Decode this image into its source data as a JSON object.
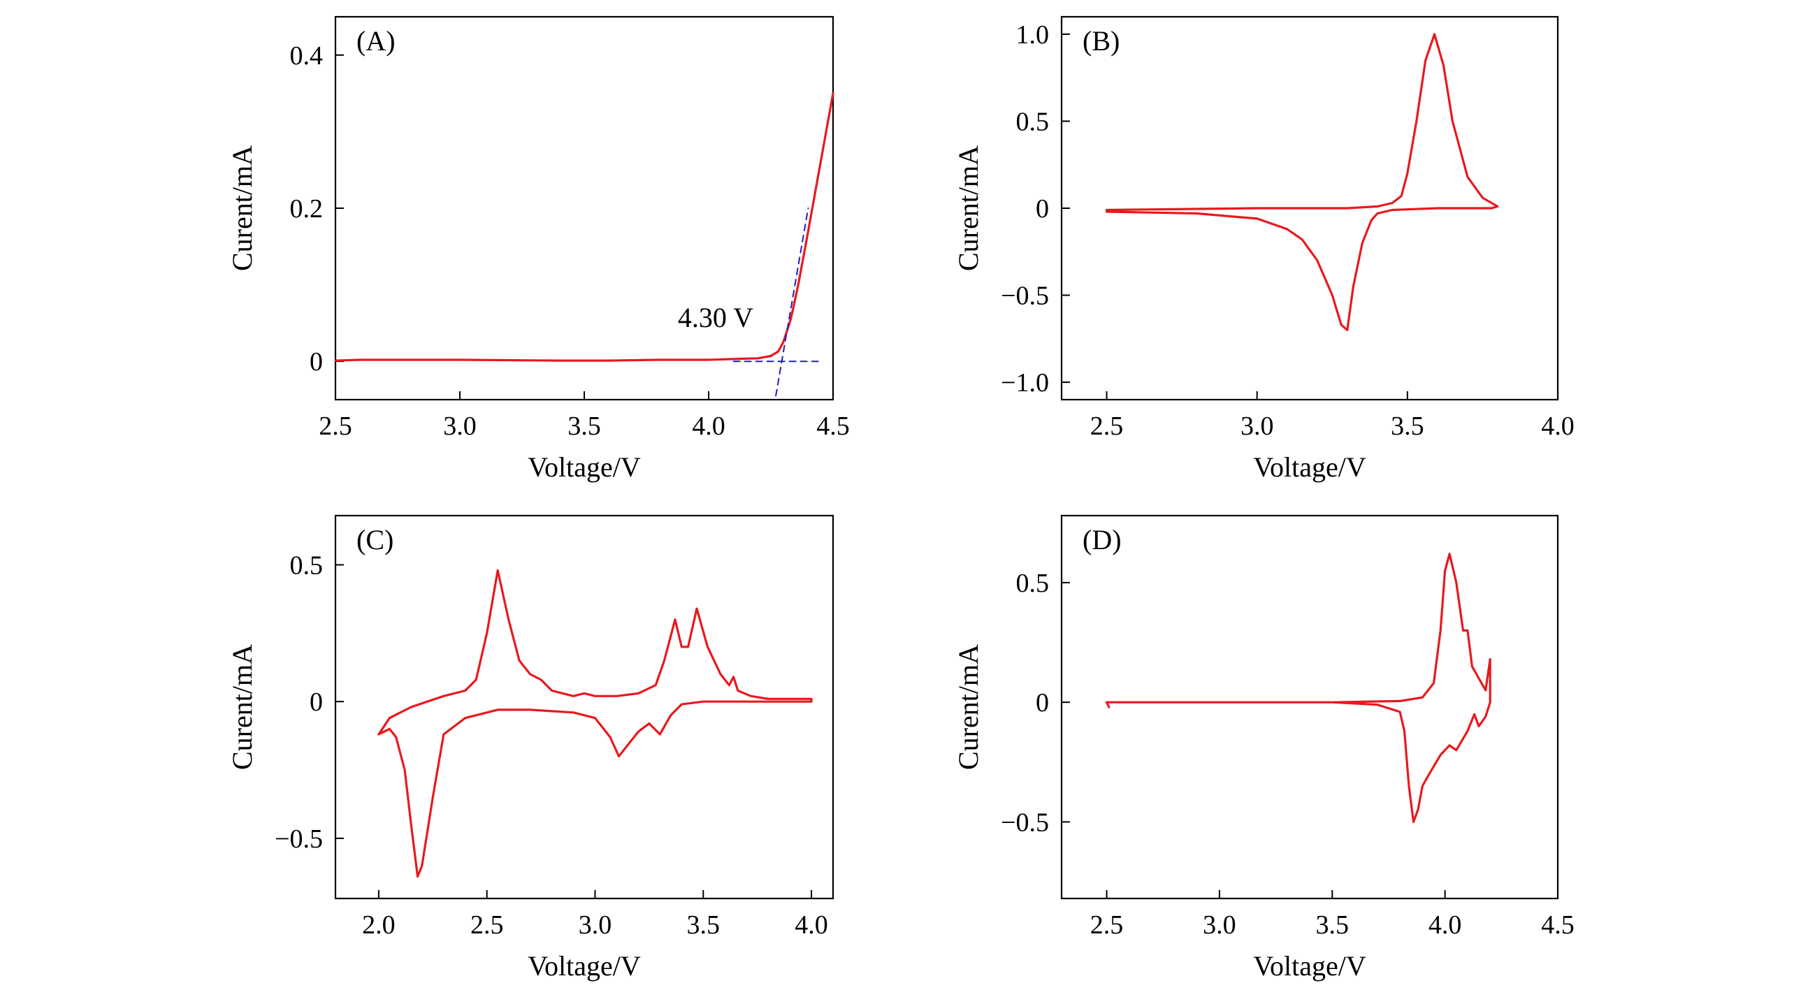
{
  "chart_data": [
    {
      "panel_label": "(A)",
      "type": "line",
      "xlabel": "Voltage/V",
      "ylabel": "Curent/mA",
      "xlim": [
        2.5,
        4.5
      ],
      "ylim": [
        -0.05,
        0.45
      ],
      "xticks": [
        "2.5",
        "3.0",
        "3.5",
        "4.0",
        "4.5"
      ],
      "yticks": [
        {
          "value": 0,
          "label": "0"
        },
        {
          "value": 0.2,
          "label": "0.2"
        },
        {
          "value": 0.4,
          "label": "0.4"
        }
      ],
      "annotation": {
        "text": "4.30 V",
        "x": 4.18,
        "y": 0.045
      },
      "series": [
        {
          "color": "#e8191e",
          "style": "solid",
          "x": [
            2.5,
            2.6,
            3.0,
            3.4,
            3.6,
            3.8,
            4.0,
            4.1,
            4.2,
            4.25,
            4.28,
            4.3,
            4.33,
            4.36,
            4.4,
            4.45,
            4.5
          ],
          "y": [
            0.001,
            0.002,
            0.002,
            0.001,
            0.001,
            0.002,
            0.002,
            0.003,
            0.004,
            0.007,
            0.013,
            0.025,
            0.055,
            0.1,
            0.17,
            0.26,
            0.35
          ]
        },
        {
          "color": "#1f1fbf",
          "style": "dashed",
          "x": [
            4.1,
            4.45
          ],
          "y": [
            0.0,
            0.0
          ]
        },
        {
          "color": "#1f1fbf",
          "style": "dashed",
          "x": [
            4.27,
            4.4
          ],
          "y": [
            -0.045,
            0.2
          ]
        }
      ]
    },
    {
      "panel_label": "(B)",
      "type": "line",
      "xlabel": "Voltage/V",
      "ylabel": "Curent/mA",
      "xlim": [
        2.35,
        4.0
      ],
      "ylim": [
        -1.1,
        1.1
      ],
      "xticks": [
        "2.5",
        "3.0",
        "3.5",
        "4.0"
      ],
      "yticks": [
        {
          "value": 1.0,
          "label": "1.0"
        },
        {
          "value": 0.5,
          "label": "0.5"
        },
        {
          "value": 0,
          "label": "0"
        },
        {
          "value": -0.5,
          "label": "−0.5"
        },
        {
          "value": -1.0,
          "label": "−1.0"
        }
      ],
      "series": [
        {
          "color": "#e8191e",
          "style": "solid",
          "x": [
            2.5,
            3.0,
            3.3,
            3.4,
            3.45,
            3.48,
            3.5,
            3.53,
            3.56,
            3.59,
            3.62,
            3.65,
            3.7,
            3.75,
            3.8,
            3.78,
            3.6,
            3.45,
            3.4,
            3.38,
            3.35,
            3.32,
            3.3,
            3.28,
            3.25,
            3.2,
            3.15,
            3.1,
            3.0,
            2.8,
            2.5
          ],
          "y": [
            -0.01,
            0.0,
            0.0,
            0.01,
            0.03,
            0.07,
            0.2,
            0.5,
            0.85,
            1.0,
            0.82,
            0.5,
            0.18,
            0.06,
            0.01,
            0.0,
            0.0,
            -0.01,
            -0.03,
            -0.07,
            -0.2,
            -0.45,
            -0.7,
            -0.67,
            -0.5,
            -0.3,
            -0.18,
            -0.12,
            -0.06,
            -0.03,
            -0.02
          ]
        }
      ]
    },
    {
      "panel_label": "(C)",
      "type": "line",
      "xlabel": "Voltage/V",
      "ylabel": "Curent/mA",
      "xlim": [
        1.8,
        4.1
      ],
      "ylim": [
        -0.72,
        0.68
      ],
      "xticks": [
        "2.0",
        "2.5",
        "3.0",
        "3.5",
        "4.0"
      ],
      "yticks": [
        {
          "value": 0.5,
          "label": "0.5"
        },
        {
          "value": 0,
          "label": "0"
        },
        {
          "value": -0.5,
          "label": "−0.5"
        }
      ],
      "series": [
        {
          "color": "#e8191e",
          "style": "solid",
          "x": [
            2.0,
            2.05,
            2.15,
            2.3,
            2.4,
            2.45,
            2.5,
            2.55,
            2.6,
            2.65,
            2.7,
            2.75,
            2.8,
            2.9,
            2.95,
            3.0,
            3.1,
            3.2,
            3.28,
            3.32,
            3.37,
            3.4,
            3.43,
            3.47,
            3.52,
            3.58,
            3.62,
            3.64,
            3.66,
            3.72,
            3.8,
            4.0,
            4.0,
            3.8,
            3.5,
            3.4,
            3.35,
            3.3,
            3.25,
            3.2,
            3.15,
            3.11,
            3.07,
            3.0,
            2.9,
            2.7,
            2.55,
            2.4,
            2.3,
            2.25,
            2.2,
            2.18,
            2.15,
            2.12,
            2.08,
            2.05,
            2.0
          ],
          "y": [
            -0.12,
            -0.06,
            -0.02,
            0.02,
            0.04,
            0.08,
            0.25,
            0.48,
            0.3,
            0.15,
            0.1,
            0.08,
            0.04,
            0.02,
            0.03,
            0.02,
            0.02,
            0.03,
            0.06,
            0.15,
            0.3,
            0.2,
            0.2,
            0.34,
            0.2,
            0.1,
            0.06,
            0.09,
            0.04,
            0.02,
            0.01,
            0.01,
            0.0,
            0.0,
            0.0,
            -0.01,
            -0.05,
            -0.12,
            -0.08,
            -0.11,
            -0.16,
            -0.2,
            -0.13,
            -0.06,
            -0.04,
            -0.03,
            -0.03,
            -0.06,
            -0.12,
            -0.35,
            -0.6,
            -0.64,
            -0.45,
            -0.25,
            -0.13,
            -0.1,
            -0.12
          ]
        }
      ]
    },
    {
      "panel_label": "(D)",
      "type": "line",
      "xlabel": "Voltage/V",
      "ylabel": "Curent/mA",
      "xlim": [
        2.3,
        4.5
      ],
      "ylim": [
        -0.82,
        0.78
      ],
      "xticks": [
        "2.5",
        "3.0",
        "3.5",
        "4.0",
        "4.5"
      ],
      "yticks": [
        {
          "value": 0.5,
          "label": "0.5"
        },
        {
          "value": 0,
          "label": "0"
        },
        {
          "value": -0.5,
          "label": "−0.5"
        }
      ],
      "series": [
        {
          "color": "#e8191e",
          "style": "solid",
          "x": [
            2.5,
            3.0,
            3.5,
            3.8,
            3.9,
            3.95,
            3.98,
            4.0,
            4.02,
            4.05,
            4.08,
            4.1,
            4.12,
            4.15,
            4.18,
            4.2,
            4.2,
            4.18,
            4.15,
            4.13,
            4.1,
            4.05,
            4.02,
            3.98,
            3.93,
            3.9,
            3.88,
            3.86,
            3.84,
            3.82,
            3.8,
            3.7,
            3.5,
            3.0,
            2.5,
            2.51
          ],
          "y": [
            0.0,
            0.0,
            0.0,
            0.005,
            0.02,
            0.08,
            0.3,
            0.55,
            0.62,
            0.5,
            0.3,
            0.3,
            0.15,
            0.1,
            0.05,
            0.18,
            0.0,
            -0.06,
            -0.1,
            -0.05,
            -0.12,
            -0.2,
            -0.18,
            -0.22,
            -0.3,
            -0.35,
            -0.45,
            -0.5,
            -0.35,
            -0.12,
            -0.04,
            -0.01,
            0.0,
            0.0,
            0.0,
            -0.02
          ]
        }
      ]
    }
  ]
}
